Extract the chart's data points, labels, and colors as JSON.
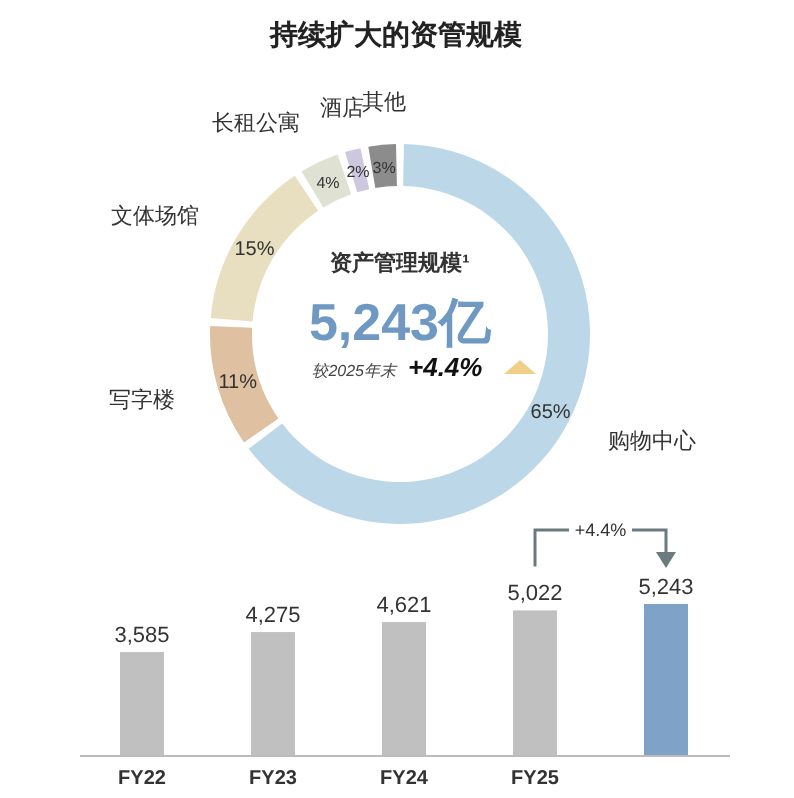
{
  "chart_data": [
    {
      "type": "donut",
      "title": "持续扩大的资管规模",
      "categories": [
        "购物中心",
        "写字楼",
        "文体场馆",
        "长租公寓",
        "酒店",
        "其他"
      ],
      "values": [
        65,
        11,
        15,
        4,
        2,
        3
      ],
      "value_labels": [
        "65%",
        "11%",
        "15%",
        "4%",
        "2%",
        "3%"
      ],
      "colors": [
        "#bcd7e8",
        "#dfc0a0",
        "#e8dfc0",
        "#dfe2d2",
        "#cdc8de",
        "#8c8c8c"
      ],
      "annotations": [
        "资产管理规模¹",
        "5,243亿",
        "较2025年末",
        "+4.4%"
      ]
    },
    {
      "type": "bar",
      "categories": [
        "FY22",
        "FY23",
        "FY24",
        "FY25",
        null
      ],
      "values": [
        3585,
        4275,
        4621,
        5022,
        5243
      ],
      "value_labels": [
        "3,585",
        "4,275",
        "4,621",
        "5,022",
        "5,243"
      ],
      "colors": [
        "#c0c0c0",
        "#c0c0c0",
        "#c0c0c0",
        "#c0c0c0",
        "#7fa3c8"
      ],
      "annotations": [
        "+4.4%"
      ]
    }
  ]
}
